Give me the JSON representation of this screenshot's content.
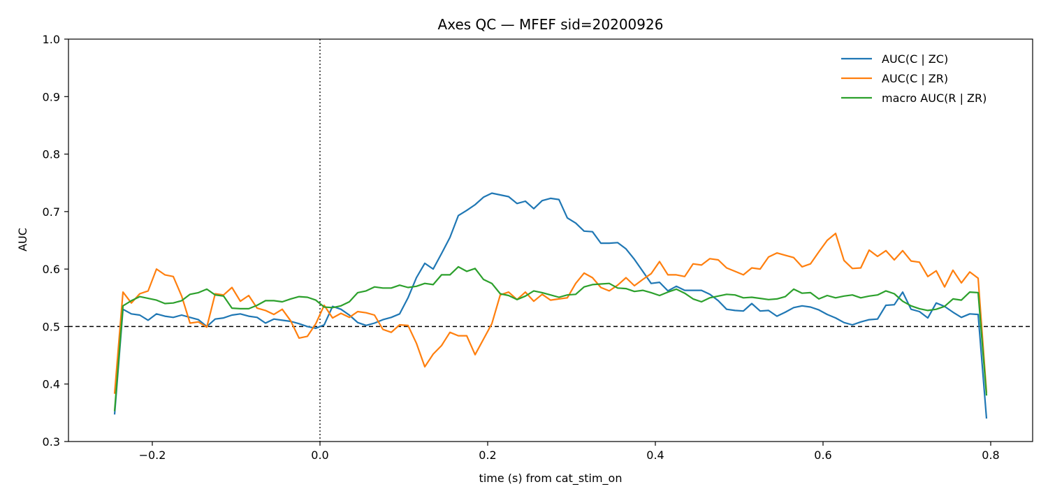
{
  "chart_data": {
    "type": "line",
    "title": "Axes QC — MFEF  sid=20200926",
    "xlabel": "time (s) from cat_stim_on",
    "ylabel": "AUC",
    "xlim": [
      -0.3,
      0.85
    ],
    "ylim": [
      0.3,
      1.0
    ],
    "xticks": [
      -0.2,
      0.0,
      0.2,
      0.4,
      0.6,
      0.8
    ],
    "xtick_labels": [
      "−0.2",
      "0.0",
      "0.2",
      "0.4",
      "0.6",
      "0.8"
    ],
    "yticks": [
      0.3,
      0.4,
      0.5,
      0.6,
      0.7,
      0.8,
      0.9,
      1.0
    ],
    "ytick_labels": [
      "0.3",
      "0.4",
      "0.5",
      "0.6",
      "0.7",
      "0.8",
      "0.9",
      "1.0"
    ],
    "grid": false,
    "legend_position": "top-right",
    "reference_lines": [
      {
        "orientation": "horizontal",
        "value": 0.5,
        "style": "dashed"
      },
      {
        "orientation": "vertical",
        "value": 0.0,
        "style": "dotted"
      }
    ],
    "x": [
      -0.245,
      -0.235,
      -0.225,
      -0.215,
      -0.205,
      -0.195,
      -0.185,
      -0.175,
      -0.165,
      -0.155,
      -0.145,
      -0.135,
      -0.125,
      -0.115,
      -0.105,
      -0.095,
      -0.085,
      -0.075,
      -0.065,
      -0.055,
      -0.045,
      -0.035,
      -0.025,
      -0.015,
      -0.005,
      0.005,
      0.015,
      0.025,
      0.035,
      0.045,
      0.055,
      0.065,
      0.075,
      0.085,
      0.095,
      0.105,
      0.115,
      0.125,
      0.135,
      0.145,
      0.155,
      0.165,
      0.175,
      0.185,
      0.195,
      0.205,
      0.215,
      0.225,
      0.235,
      0.245,
      0.255,
      0.265,
      0.275,
      0.285,
      0.295,
      0.305,
      0.315,
      0.325,
      0.335,
      0.345,
      0.355,
      0.365,
      0.375,
      0.385,
      0.395,
      0.405,
      0.415,
      0.425,
      0.435,
      0.445,
      0.455,
      0.465,
      0.475,
      0.485,
      0.495,
      0.505,
      0.515,
      0.525,
      0.535,
      0.545,
      0.555,
      0.565,
      0.575,
      0.585,
      0.595,
      0.605,
      0.615,
      0.625,
      0.635,
      0.645,
      0.655,
      0.665,
      0.675,
      0.685,
      0.695,
      0.705,
      0.715,
      0.725,
      0.735,
      0.745,
      0.755,
      0.765,
      0.775,
      0.785,
      0.795
    ],
    "series": [
      {
        "name": "AUC(C | ZC)",
        "color": "#1f77b4",
        "values": [
          0.347,
          0.53,
          0.522,
          0.52,
          0.511,
          0.522,
          0.518,
          0.516,
          0.52,
          0.516,
          0.512,
          0.5,
          0.513,
          0.515,
          0.52,
          0.522,
          0.518,
          0.516,
          0.506,
          0.513,
          0.511,
          0.509,
          0.505,
          0.5,
          0.497,
          0.503,
          0.535,
          0.53,
          0.52,
          0.507,
          0.502,
          0.506,
          0.512,
          0.516,
          0.522,
          0.55,
          0.585,
          0.61,
          0.6,
          0.627,
          0.655,
          0.693,
          0.702,
          0.712,
          0.725,
          0.732,
          0.729,
          0.726,
          0.714,
          0.718,
          0.705,
          0.719,
          0.723,
          0.721,
          0.689,
          0.68,
          0.666,
          0.665,
          0.645,
          0.645,
          0.646,
          0.635,
          0.617,
          0.596,
          0.575,
          0.577,
          0.562,
          0.57,
          0.563,
          0.563,
          0.563,
          0.556,
          0.545,
          0.53,
          0.528,
          0.527,
          0.54,
          0.527,
          0.528,
          0.518,
          0.525,
          0.533,
          0.536,
          0.534,
          0.529,
          0.521,
          0.515,
          0.507,
          0.503,
          0.508,
          0.512,
          0.513,
          0.537,
          0.538,
          0.56,
          0.53,
          0.526,
          0.515,
          0.541,
          0.535,
          0.525,
          0.516,
          0.522,
          0.521,
          0.34
        ]
      },
      {
        "name": "AUC(C | ZR)",
        "color": "#ff7f0e",
        "values": [
          0.383,
          0.56,
          0.541,
          0.557,
          0.562,
          0.6,
          0.59,
          0.587,
          0.553,
          0.506,
          0.508,
          0.499,
          0.557,
          0.555,
          0.568,
          0.544,
          0.554,
          0.532,
          0.528,
          0.521,
          0.53,
          0.51,
          0.48,
          0.483,
          0.505,
          0.537,
          0.515,
          0.523,
          0.516,
          0.526,
          0.524,
          0.52,
          0.495,
          0.49,
          0.503,
          0.502,
          0.471,
          0.43,
          0.452,
          0.467,
          0.49,
          0.484,
          0.484,
          0.451,
          0.478,
          0.505,
          0.555,
          0.56,
          0.547,
          0.56,
          0.544,
          0.556,
          0.546,
          0.548,
          0.55,
          0.575,
          0.593,
          0.585,
          0.568,
          0.562,
          0.572,
          0.585,
          0.571,
          0.582,
          0.592,
          0.613,
          0.59,
          0.59,
          0.587,
          0.609,
          0.607,
          0.618,
          0.616,
          0.602,
          0.596,
          0.59,
          0.602,
          0.6,
          0.621,
          0.628,
          0.624,
          0.62,
          0.604,
          0.609,
          0.63,
          0.65,
          0.662,
          0.615,
          0.601,
          0.602,
          0.633,
          0.622,
          0.632,
          0.616,
          0.632,
          0.614,
          0.612,
          0.587,
          0.597,
          0.569,
          0.598,
          0.576,
          0.595,
          0.584,
          0.385
        ]
      },
      {
        "name": "macro AUC(R | ZR)",
        "color": "#2ca02c",
        "values": [
          0.353,
          0.536,
          0.545,
          0.552,
          0.549,
          0.546,
          0.54,
          0.541,
          0.545,
          0.556,
          0.559,
          0.565,
          0.555,
          0.553,
          0.532,
          0.531,
          0.531,
          0.537,
          0.545,
          0.545,
          0.543,
          0.548,
          0.552,
          0.551,
          0.546,
          0.534,
          0.533,
          0.536,
          0.543,
          0.559,
          0.562,
          0.569,
          0.567,
          0.567,
          0.572,
          0.568,
          0.57,
          0.575,
          0.573,
          0.59,
          0.59,
          0.604,
          0.596,
          0.601,
          0.582,
          0.575,
          0.557,
          0.554,
          0.547,
          0.553,
          0.562,
          0.559,
          0.555,
          0.551,
          0.555,
          0.556,
          0.569,
          0.573,
          0.574,
          0.575,
          0.567,
          0.566,
          0.561,
          0.563,
          0.559,
          0.554,
          0.56,
          0.565,
          0.558,
          0.548,
          0.543,
          0.55,
          0.553,
          0.556,
          0.555,
          0.55,
          0.551,
          0.549,
          0.547,
          0.548,
          0.552,
          0.565,
          0.558,
          0.559,
          0.548,
          0.554,
          0.55,
          0.553,
          0.555,
          0.55,
          0.553,
          0.555,
          0.562,
          0.557,
          0.544,
          0.536,
          0.531,
          0.528,
          0.53,
          0.535,
          0.548,
          0.546,
          0.56,
          0.559,
          0.38
        ]
      }
    ]
  }
}
